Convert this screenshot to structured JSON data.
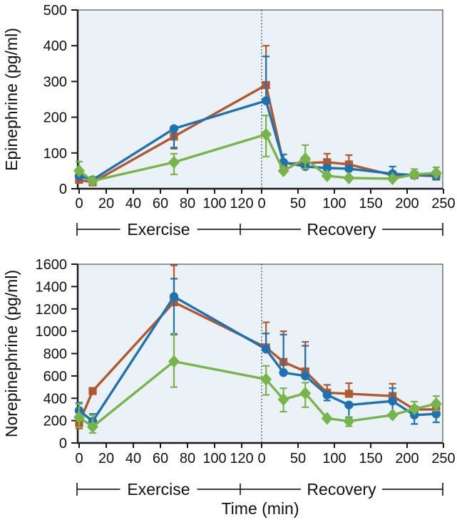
{
  "figure": {
    "xlabel": "Time (min)",
    "phase_labels": [
      "Exercise",
      "Recovery"
    ],
    "colors": {
      "plot_bg": "#eaf2f8",
      "axis": "#1a1a1a",
      "text": "#111111",
      "blue": "#1f72b2",
      "red": "#b2582f",
      "green": "#77b54a"
    }
  },
  "chart_data": [
    {
      "type": "line",
      "name": "epinephrine",
      "ylabel": "Epinephrine (pg/ml)",
      "ylim": [
        0,
        500
      ],
      "yticks": [
        0,
        100,
        200,
        300,
        400,
        500
      ],
      "x_ticks_exercise": [
        0,
        20,
        40,
        60,
        80,
        100,
        120
      ],
      "x_ticks_recovery": [
        0,
        50,
        100,
        150,
        200,
        250
      ],
      "phases": [
        "Exercise",
        "Recovery"
      ],
      "grid": false,
      "legend": "none",
      "series": [
        {
          "name": "red-squares",
          "color_key": "red",
          "marker": "square",
          "points": [
            {
              "phase": "exercise",
              "t": 0,
              "v": 25
            },
            {
              "phase": "exercise",
              "t": 10,
              "v": 18
            },
            {
              "phase": "exercise",
              "t": 70,
              "v": 146,
              "lo": 112
            },
            {
              "phase": "recovery",
              "t": 6,
              "v": 290,
              "hi": 400
            },
            {
              "phase": "recovery",
              "t": 30,
              "v": 70
            },
            {
              "phase": "recovery",
              "t": 60,
              "v": 72
            },
            {
              "phase": "recovery",
              "t": 90,
              "v": 74,
              "hi": 98
            },
            {
              "phase": "recovery",
              "t": 120,
              "v": 68,
              "hi": 94
            },
            {
              "phase": "recovery",
              "t": 180,
              "v": 38
            },
            {
              "phase": "recovery",
              "t": 210,
              "v": 38
            },
            {
              "phase": "recovery",
              "t": 240,
              "v": 35
            }
          ]
        },
        {
          "name": "blue-circles",
          "color_key": "blue",
          "marker": "circle",
          "points": [
            {
              "phase": "exercise",
              "t": 0,
              "v": 35
            },
            {
              "phase": "exercise",
              "t": 10,
              "v": 25
            },
            {
              "phase": "exercise",
              "t": 70,
              "v": 168,
              "lo": 115
            },
            {
              "phase": "recovery",
              "t": 6,
              "v": 246,
              "hi": 370
            },
            {
              "phase": "recovery",
              "t": 30,
              "v": 74,
              "hi": 96,
              "lo": 52
            },
            {
              "phase": "recovery",
              "t": 60,
              "v": 62
            },
            {
              "phase": "recovery",
              "t": 90,
              "v": 58
            },
            {
              "phase": "recovery",
              "t": 120,
              "v": 56
            },
            {
              "phase": "recovery",
              "t": 180,
              "v": 42,
              "hi": 62
            },
            {
              "phase": "recovery",
              "t": 210,
              "v": 38
            },
            {
              "phase": "recovery",
              "t": 240,
              "v": 38,
              "lo": 25
            }
          ]
        },
        {
          "name": "green-diamonds",
          "color_key": "green",
          "marker": "diamond",
          "points": [
            {
              "phase": "exercise",
              "t": 0,
              "v": 50,
              "hi": 76
            },
            {
              "phase": "exercise",
              "t": 10,
              "v": 22
            },
            {
              "phase": "exercise",
              "t": 70,
              "v": 74,
              "hi": 98,
              "lo": 40
            },
            {
              "phase": "recovery",
              "t": 6,
              "v": 152,
              "hi": 205,
              "lo": 90
            },
            {
              "phase": "recovery",
              "t": 30,
              "v": 50
            },
            {
              "phase": "recovery",
              "t": 60,
              "v": 84,
              "hi": 122,
              "lo": 56
            },
            {
              "phase": "recovery",
              "t": 90,
              "v": 36
            },
            {
              "phase": "recovery",
              "t": 120,
              "v": 30
            },
            {
              "phase": "recovery",
              "t": 180,
              "v": 28
            },
            {
              "phase": "recovery",
              "t": 210,
              "v": 40,
              "hi": 55
            },
            {
              "phase": "recovery",
              "t": 240,
              "v": 44,
              "hi": 60
            }
          ]
        }
      ]
    },
    {
      "type": "line",
      "name": "norepinephrine",
      "ylabel": "Norepinephrine (pg/ml)",
      "ylim": [
        0,
        1600
      ],
      "yticks": [
        0,
        200,
        400,
        600,
        800,
        1000,
        1200,
        1400,
        1600
      ],
      "x_ticks_exercise": [
        0,
        20,
        40,
        60,
        80,
        100,
        120
      ],
      "x_ticks_recovery": [
        0,
        50,
        100,
        150,
        200,
        250
      ],
      "phases": [
        "Exercise",
        "Recovery"
      ],
      "grid": false,
      "legend": "none",
      "series": [
        {
          "name": "red-squares",
          "color_key": "red",
          "marker": "square",
          "points": [
            {
              "phase": "exercise",
              "t": 0,
              "v": 180,
              "lo": 130
            },
            {
              "phase": "exercise",
              "t": 10,
              "v": 465
            },
            {
              "phase": "exercise",
              "t": 70,
              "v": 1260,
              "hi": 1590
            },
            {
              "phase": "recovery",
              "t": 6,
              "v": 855,
              "hi": 1080
            },
            {
              "phase": "recovery",
              "t": 30,
              "v": 725,
              "hi": 1000
            },
            {
              "phase": "recovery",
              "t": 60,
              "v": 640,
              "hi": 905
            },
            {
              "phase": "recovery",
              "t": 90,
              "v": 450,
              "hi": 520
            },
            {
              "phase": "recovery",
              "t": 120,
              "v": 440,
              "hi": 535
            },
            {
              "phase": "recovery",
              "t": 180,
              "v": 420,
              "hi": 530
            },
            {
              "phase": "recovery",
              "t": 210,
              "v": 300
            },
            {
              "phase": "recovery",
              "t": 240,
              "v": 300,
              "hi": 370
            }
          ]
        },
        {
          "name": "blue-circles",
          "color_key": "blue",
          "marker": "circle",
          "points": [
            {
              "phase": "exercise",
              "t": 0,
              "v": 290,
              "hi": 360
            },
            {
              "phase": "exercise",
              "t": 10,
              "v": 195,
              "hi": 260,
              "lo": 140
            },
            {
              "phase": "exercise",
              "t": 70,
              "v": 1310,
              "hi": 1470,
              "lo": 970
            },
            {
              "phase": "recovery",
              "t": 6,
              "v": 840,
              "hi": 980
            },
            {
              "phase": "recovery",
              "t": 30,
              "v": 630,
              "hi": 970
            },
            {
              "phase": "recovery",
              "t": 60,
              "v": 600,
              "hi": 870
            },
            {
              "phase": "recovery",
              "t": 90,
              "v": 430,
              "lo": 380
            },
            {
              "phase": "recovery",
              "t": 120,
              "v": 340,
              "lo": 230
            },
            {
              "phase": "recovery",
              "t": 180,
              "v": 375,
              "hi": 490,
              "lo": 260
            },
            {
              "phase": "recovery",
              "t": 210,
              "v": 250,
              "lo": 170
            },
            {
              "phase": "recovery",
              "t": 240,
              "v": 260,
              "lo": 185
            }
          ]
        },
        {
          "name": "green-diamonds",
          "color_key": "green",
          "marker": "diamond",
          "points": [
            {
              "phase": "exercise",
              "t": 0,
              "v": 230,
              "hi": 350,
              "lo": 140
            },
            {
              "phase": "exercise",
              "t": 10,
              "v": 145,
              "hi": 250,
              "lo": 90
            },
            {
              "phase": "exercise",
              "t": 70,
              "v": 730,
              "hi": 980,
              "lo": 500
            },
            {
              "phase": "recovery",
              "t": 6,
              "v": 570,
              "hi": 690,
              "lo": 430
            },
            {
              "phase": "recovery",
              "t": 30,
              "v": 390,
              "hi": 490,
              "lo": 280
            },
            {
              "phase": "recovery",
              "t": 60,
              "v": 445,
              "hi": 540,
              "lo": 320
            },
            {
              "phase": "recovery",
              "t": 90,
              "v": 220
            },
            {
              "phase": "recovery",
              "t": 120,
              "v": 195,
              "lo": 150
            },
            {
              "phase": "recovery",
              "t": 180,
              "v": 250
            },
            {
              "phase": "recovery",
              "t": 210,
              "v": 305,
              "hi": 370
            },
            {
              "phase": "recovery",
              "t": 240,
              "v": 350,
              "hi": 420,
              "lo": 290
            }
          ]
        }
      ]
    }
  ]
}
